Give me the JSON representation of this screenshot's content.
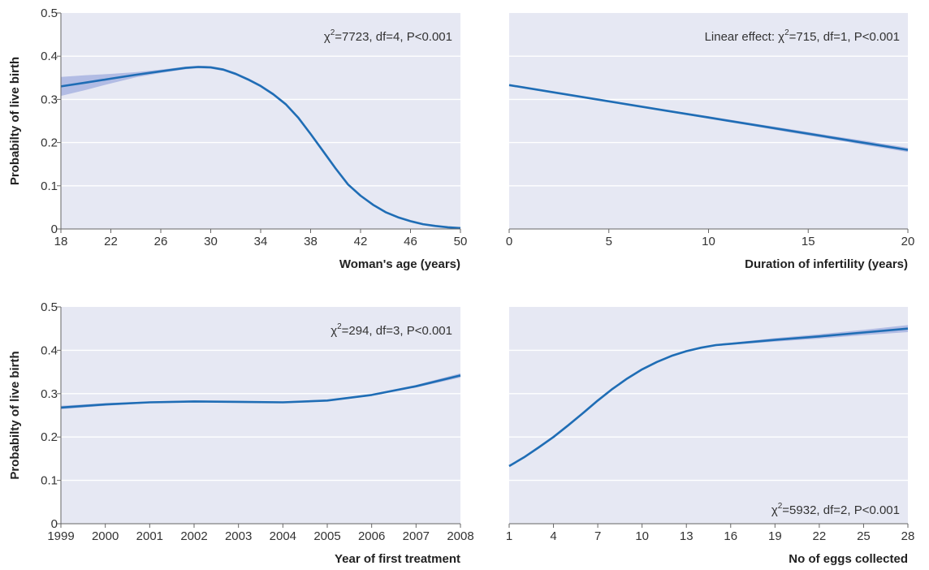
{
  "chart_data": [
    {
      "type": "line",
      "panel": "top-left",
      "xlabel": "Woman's age (years)",
      "ylabel": "Probabilty of live birth",
      "xlim": [
        18,
        50
      ],
      "ylim": [
        0,
        0.5
      ],
      "xticks": [
        "18",
        "22",
        "26",
        "30",
        "34",
        "38",
        "42",
        "46",
        "50"
      ],
      "yticks": [
        "0",
        "0.1",
        "0.2",
        "0.3",
        "0.4",
        "0.5"
      ],
      "annotation": {
        "pre": "χ",
        "sup": "2",
        "post": "=7723, df=4, P<0.001"
      },
      "x": [
        18,
        20,
        22,
        24,
        26,
        28,
        29,
        30,
        31,
        32,
        33,
        34,
        35,
        36,
        37,
        38,
        39,
        40,
        41,
        42,
        43,
        44,
        45,
        46,
        47,
        48,
        49,
        50
      ],
      "y": [
        0.33,
        0.339,
        0.348,
        0.357,
        0.365,
        0.373,
        0.375,
        0.374,
        0.369,
        0.359,
        0.346,
        0.331,
        0.312,
        0.289,
        0.258,
        0.22,
        0.18,
        0.14,
        0.103,
        0.077,
        0.056,
        0.039,
        0.027,
        0.018,
        0.011,
        0.007,
        0.004,
        0.002
      ],
      "lower": [
        0.308,
        0.322,
        0.337,
        0.351,
        0.361,
        0.37,
        0.372,
        0.371,
        0.366,
        0.356,
        0.343,
        0.328,
        0.309,
        0.286,
        0.255,
        0.217,
        0.178,
        0.138,
        0.101,
        0.075,
        0.055,
        0.038,
        0.026,
        0.017,
        0.01,
        0.006,
        0.003,
        0.001
      ],
      "upper": [
        0.352,
        0.356,
        0.359,
        0.363,
        0.369,
        0.376,
        0.378,
        0.377,
        0.372,
        0.362,
        0.349,
        0.334,
        0.315,
        0.292,
        0.261,
        0.223,
        0.182,
        0.142,
        0.105,
        0.079,
        0.057,
        0.04,
        0.028,
        0.019,
        0.012,
        0.008,
        0.005,
        0.003
      ]
    },
    {
      "type": "line",
      "panel": "top-right",
      "xlabel": "Duration of infertility (years)",
      "ylabel": "",
      "xlim": [
        0,
        20
      ],
      "ylim": [
        0,
        0.5
      ],
      "xticks": [
        "0",
        "5",
        "10",
        "15",
        "20"
      ],
      "yticks": [],
      "annotation": {
        "pre": "Linear effect: χ",
        "sup": "2",
        "post": "=715, df=1, P<0.001"
      },
      "x": [
        0,
        2,
        4,
        6,
        8,
        10,
        12,
        14,
        16,
        18,
        20
      ],
      "y": [
        0.333,
        0.318,
        0.303,
        0.288,
        0.273,
        0.258,
        0.243,
        0.228,
        0.213,
        0.198,
        0.183
      ],
      "lower": [
        0.331,
        0.316,
        0.301,
        0.286,
        0.271,
        0.255,
        0.24,
        0.224,
        0.209,
        0.193,
        0.178
      ],
      "upper": [
        0.335,
        0.32,
        0.305,
        0.29,
        0.275,
        0.261,
        0.246,
        0.232,
        0.217,
        0.203,
        0.188
      ]
    },
    {
      "type": "line",
      "panel": "bottom-left",
      "xlabel": "Year of first treatment",
      "ylabel": "Probabilty of live birth",
      "xlim": [
        1999,
        2008
      ],
      "ylim": [
        0,
        0.5
      ],
      "xticks": [
        "1999",
        "2000",
        "2001",
        "2002",
        "2003",
        "2004",
        "2005",
        "2006",
        "2007",
        "2008"
      ],
      "yticks": [
        "0",
        "0.1",
        "0.2",
        "0.3",
        "0.4",
        "0.5"
      ],
      "annotation": {
        "pre": "χ",
        "sup": "2",
        "post": "=294, df=3, P<0.001"
      },
      "x": [
        1999,
        2000,
        2001,
        2002,
        2003,
        2004,
        2005,
        2006,
        2007,
        2008
      ],
      "y": [
        0.268,
        0.275,
        0.28,
        0.282,
        0.281,
        0.28,
        0.284,
        0.297,
        0.317,
        0.342
      ],
      "lower": [
        0.264,
        0.272,
        0.278,
        0.28,
        0.279,
        0.278,
        0.282,
        0.295,
        0.314,
        0.337
      ],
      "upper": [
        0.272,
        0.278,
        0.282,
        0.284,
        0.283,
        0.282,
        0.286,
        0.299,
        0.32,
        0.347
      ]
    },
    {
      "type": "line",
      "panel": "bottom-right",
      "xlabel": "No of eggs collected",
      "ylabel": "",
      "xlim": [
        1,
        28
      ],
      "ylim": [
        0,
        0.5
      ],
      "xticks": [
        "1",
        "4",
        "7",
        "10",
        "13",
        "16",
        "19",
        "22",
        "25",
        "28"
      ],
      "yticks": [],
      "annotation": {
        "pre": "χ",
        "sup": "2",
        "post": "=5932, df=2, P<0.001"
      },
      "x": [
        1,
        2,
        3,
        4,
        5,
        6,
        7,
        8,
        9,
        10,
        11,
        12,
        13,
        14,
        15,
        16,
        17,
        19,
        22,
        25,
        28
      ],
      "y": [
        0.133,
        0.153,
        0.176,
        0.2,
        0.227,
        0.255,
        0.284,
        0.311,
        0.335,
        0.356,
        0.373,
        0.387,
        0.398,
        0.406,
        0.412,
        0.415,
        0.418,
        0.424,
        0.432,
        0.441,
        0.45
      ],
      "lower": [
        0.131,
        0.151,
        0.174,
        0.198,
        0.225,
        0.253,
        0.282,
        0.309,
        0.333,
        0.354,
        0.371,
        0.385,
        0.396,
        0.404,
        0.41,
        0.413,
        0.415,
        0.42,
        0.427,
        0.435,
        0.442
      ],
      "upper": [
        0.135,
        0.155,
        0.178,
        0.202,
        0.229,
        0.257,
        0.286,
        0.313,
        0.337,
        0.358,
        0.375,
        0.389,
        0.4,
        0.408,
        0.414,
        0.417,
        0.421,
        0.428,
        0.437,
        0.447,
        0.458
      ]
    }
  ],
  "colors": {
    "panel_bg": "#e6e8f3",
    "line": "#1f6db5",
    "band": "#a8b4e0",
    "gridline": "#ffffff"
  }
}
